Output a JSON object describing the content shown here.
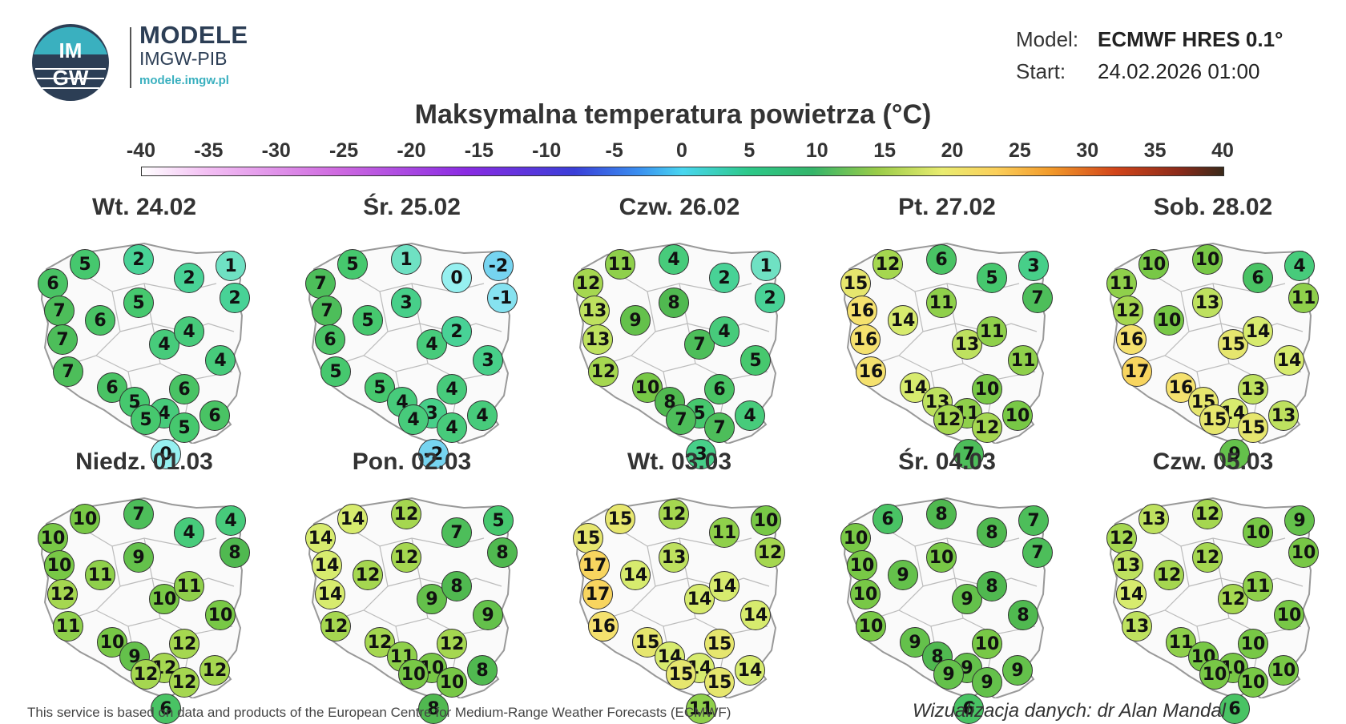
{
  "header": {
    "brand_title": "MODELE",
    "brand_subtitle": "IMGW-PIB",
    "brand_url": "modele.imgw.pl",
    "logo_text_top": "IM",
    "logo_text_bottom": "GW",
    "model_label": "Model:",
    "model_value": "ECMWF HRES 0.1°",
    "start_label": "Start:",
    "start_value": "24.02.2026 01:00"
  },
  "title": "Maksymalna temperatura powietrza (°C)",
  "legend": {
    "ticks": [
      "-40",
      "-35",
      "-30",
      "-25",
      "-20",
      "-15",
      "-10",
      "-5",
      "0",
      "5",
      "10",
      "15",
      "20",
      "25",
      "30",
      "35",
      "40"
    ],
    "min": -40,
    "max": 40
  },
  "stations": [
    "NW-coast",
    "W-coast",
    "Gdansk",
    "NE",
    "E-border",
    "NW-inland",
    "W-pomerania",
    "central-north",
    "central",
    "NE-inland",
    "W-central",
    "W-mid",
    "SW",
    "lodz",
    "E-central",
    "lower-silesia",
    "S-central",
    "east",
    "sudetes",
    "krakow",
    "SE",
    "tatra"
  ],
  "panels": [
    {
      "day": "Wt. 24.02",
      "values": [
        6,
        5,
        2,
        2,
        1,
        7,
        6,
        5,
        4,
        2,
        7,
        7,
        6,
        4,
        4,
        5,
        4,
        6,
        5,
        5,
        6,
        0
      ]
    },
    {
      "day": "Śr. 25.02",
      "values": [
        7,
        5,
        1,
        0,
        -2,
        7,
        5,
        3,
        4,
        -1,
        6,
        5,
        5,
        2,
        3,
        4,
        3,
        4,
        4,
        4,
        4,
        -2
      ]
    },
    {
      "day": "Czw. 26.02",
      "values": [
        12,
        11,
        4,
        2,
        1,
        13,
        9,
        8,
        7,
        2,
        13,
        12,
        10,
        4,
        5,
        8,
        5,
        4,
        7,
        7,
        6,
        3
      ]
    },
    {
      "day": "Pt. 27.02",
      "values": [
        15,
        12,
        6,
        5,
        3,
        16,
        14,
        11,
        13,
        7,
        16,
        16,
        14,
        11,
        11,
        13,
        11,
        10,
        12,
        12,
        10,
        7
      ]
    },
    {
      "day": "Sob. 28.02",
      "values": [
        11,
        10,
        10,
        6,
        4,
        12,
        10,
        13,
        15,
        11,
        16,
        17,
        16,
        14,
        14,
        15,
        14,
        13,
        15,
        15,
        13,
        9
      ]
    },
    {
      "day": "Niedz. 01.03",
      "values": [
        10,
        10,
        7,
        4,
        4,
        10,
        11,
        9,
        10,
        8,
        12,
        11,
        10,
        11,
        10,
        9,
        12,
        12,
        12,
        12,
        12,
        6
      ]
    },
    {
      "day": "Pon. 02.03",
      "values": [
        14,
        14,
        12,
        7,
        5,
        14,
        12,
        12,
        9,
        8,
        14,
        12,
        12,
        8,
        9,
        11,
        10,
        8,
        10,
        10,
        12,
        8
      ]
    },
    {
      "day": "Wt. 03.03",
      "values": [
        15,
        15,
        12,
        11,
        10,
        17,
        14,
        13,
        14,
        12,
        17,
        16,
        15,
        14,
        14,
        14,
        14,
        14,
        15,
        15,
        15,
        11
      ]
    },
    {
      "day": "Śr. 04.03",
      "values": [
        10,
        6,
        8,
        8,
        7,
        10,
        9,
        10,
        9,
        7,
        10,
        10,
        9,
        8,
        8,
        8,
        9,
        9,
        9,
        9,
        10,
        6
      ]
    },
    {
      "day": "Czw. 05.03",
      "values": [
        12,
        13,
        12,
        10,
        9,
        13,
        12,
        12,
        12,
        10,
        14,
        13,
        11,
        11,
        10,
        10,
        10,
        10,
        10,
        10,
        10,
        6
      ]
    }
  ],
  "footer": {
    "source": "This service is based on data and products of the European Centre for Medium-Range Weather Forecasts (ECMWF)",
    "credit": "Wizualizacja danych: dr Alan Mandal"
  }
}
